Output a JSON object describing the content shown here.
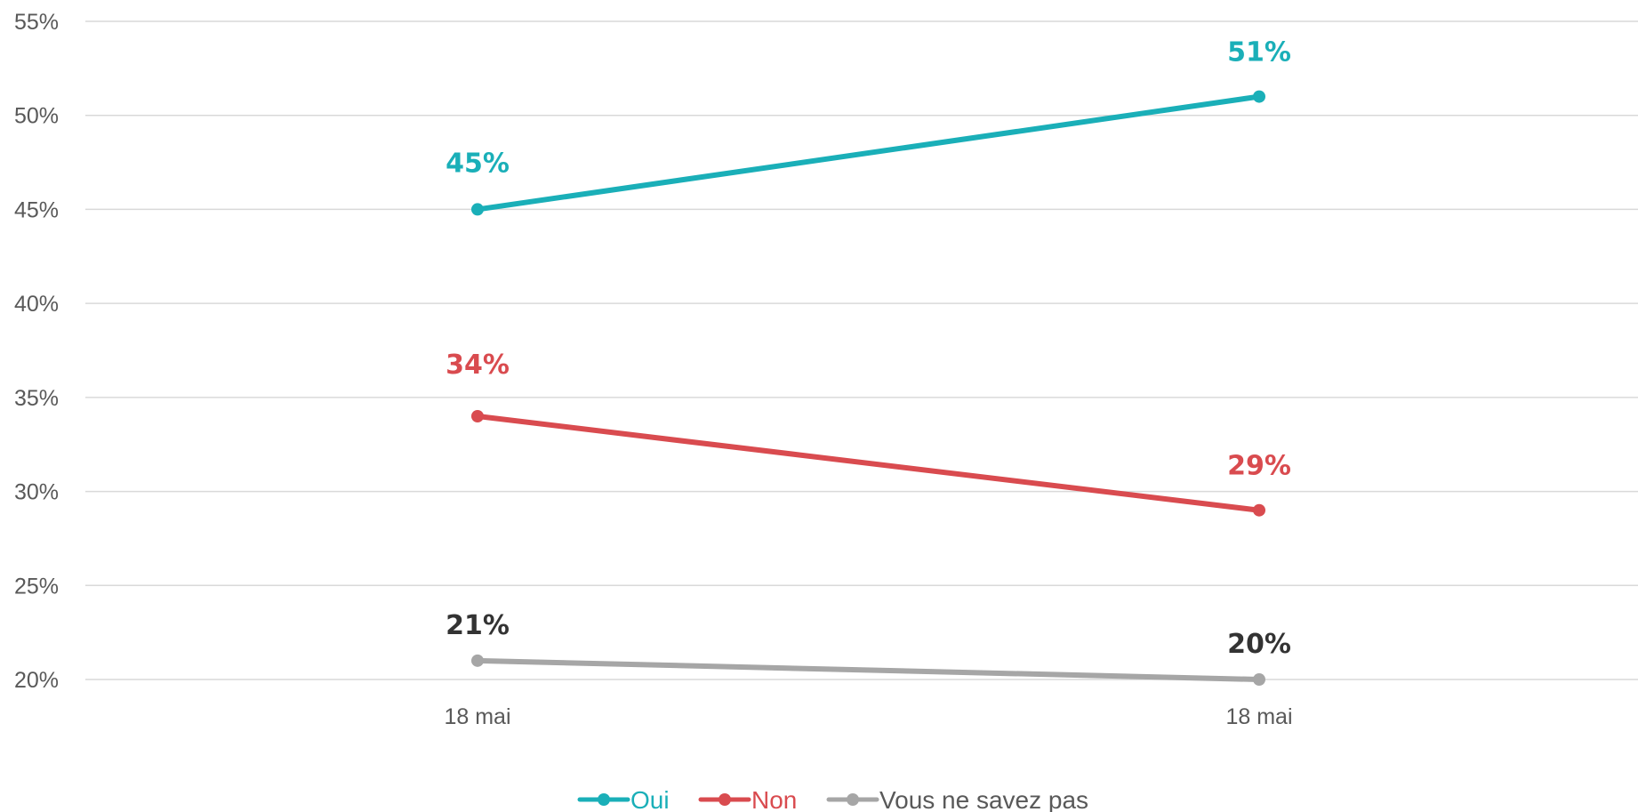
{
  "chart_data": {
    "type": "line",
    "categories": [
      "18 mai",
      "18 mai"
    ],
    "y_ticks": [
      "20%",
      "25%",
      "30%",
      "35%",
      "40%",
      "45%",
      "50%",
      "55%"
    ],
    "ylim": [
      20,
      55
    ],
    "grid": true,
    "legend_position": "bottom",
    "series": [
      {
        "name": "Oui",
        "values": [
          45,
          51
        ],
        "labels": [
          "45%",
          "51%"
        ],
        "color": "#1aafb8",
        "label_color": "#1aafb8"
      },
      {
        "name": "Non",
        "values": [
          34,
          29
        ],
        "labels": [
          "34%",
          "29%"
        ],
        "color": "#d94b4f",
        "label_color": "#d94b4f"
      },
      {
        "name": "Vous ne savez pas",
        "values": [
          21,
          20
        ],
        "labels": [
          "21%",
          "20%"
        ],
        "color": "#a6a6a6",
        "label_color": "#333333"
      }
    ]
  }
}
